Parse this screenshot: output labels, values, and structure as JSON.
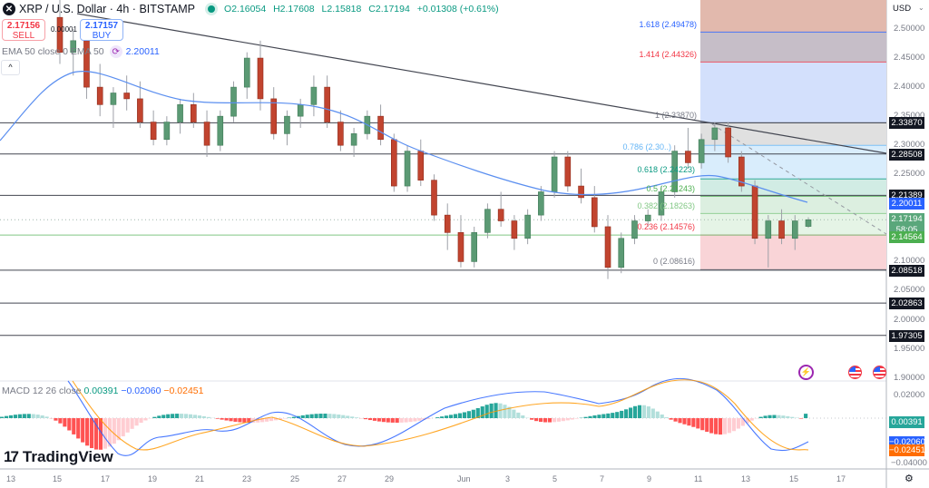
{
  "header": {
    "symbol_icon": "close-x-icon",
    "title": "XRP / U.S. Dollar · 4h · BITSTAMP",
    "status": "market-open",
    "ohlc": {
      "open": "O2.16054",
      "high": "H2.17608",
      "low": "L2.15818",
      "close": "C2.17194",
      "change": "+0.01308 (+0.61%)"
    }
  },
  "trade": {
    "sell_price": "2.17156",
    "sell_label": "SELL",
    "spread": "0.00001",
    "buy_price": "2.17157",
    "buy_label": "BUY"
  },
  "ema_legend": {
    "label": "EMA 50 close 0 EMA 50",
    "value": "2.20011"
  },
  "macd_legend": {
    "label": "MACD 12 26 close",
    "hist": "0.00391",
    "macd": "−0.02060",
    "signal": "−0.02451"
  },
  "brand": "TradingView",
  "price_axis": {
    "currency": "USD",
    "ticks": [
      "2.50000",
      "2.45000",
      "2.40000",
      "2.35000",
      "2.30000",
      "2.25000",
      "2.20000",
      "2.15000",
      "2.10000",
      "2.05000",
      "2.00000",
      "1.95000",
      "1.90000"
    ],
    "macd_ticks": [
      "0.02000",
      "−0.04000"
    ],
    "tags": [
      {
        "value": "2.33870",
        "color": "#131722"
      },
      {
        "value": "2.28508",
        "color": "#131722"
      },
      {
        "value": "2.21389",
        "color": "#131722"
      },
      {
        "value": "2.20011",
        "color": "#2962ff"
      },
      {
        "value": "2.17194",
        "color": "#5aa77b"
      },
      {
        "value": "58:05",
        "color": "#5aa77b"
      },
      {
        "value": "2.14564",
        "color": "#4caf50"
      },
      {
        "value": "2.08518",
        "color": "#131722"
      },
      {
        "value": "2.02863",
        "color": "#131722"
      },
      {
        "value": "1.97305",
        "color": "#131722"
      },
      {
        "value": "0.00391",
        "color": "#26a69a"
      },
      {
        "value": "−0.02060",
        "color": "#2962ff"
      },
      {
        "value": "−0.02451",
        "color": "#ff6d00"
      }
    ]
  },
  "time_axis": {
    "ticks": [
      "13",
      "15",
      "17",
      "19",
      "21",
      "23",
      "25",
      "27",
      "29",
      "Jun",
      "3",
      "5",
      "7",
      "9",
      "11",
      "13",
      "15",
      "17"
    ]
  },
  "fib_labels": [
    {
      "text": "1.618 (2.49478)",
      "color": "#2962ff"
    },
    {
      "text": "1.414 (2.44326)",
      "color": "#f23645"
    },
    {
      "text": "1 (2.33870)",
      "color": "#787b86"
    },
    {
      "text": "0.786 (2.30..)",
      "color": "#64b5f6"
    },
    {
      "text": "0.618 (2.24223)",
      "color": "#089981"
    },
    {
      "text": "0.5 (2.21243)",
      "color": "#4caf50"
    },
    {
      "text": "0.382 (2.18263)",
      "color": "#81c784"
    },
    {
      "text": "0.236 (2.14576)",
      "color": "#f23645"
    },
    {
      "text": "0 (2.08616)",
      "color": "#787b86"
    }
  ],
  "icons": {
    "settings": "gear-icon",
    "events": "flash-icon",
    "economic_event": "us-flag-icon",
    "currency_menu": "chevron-down-icon",
    "collapse": "chevron-up-icon"
  },
  "chart_data": {
    "type": "candlestick",
    "title": "XRP / U.S. Dollar · 4h · BITSTAMP",
    "xlabel": "",
    "ylabel": "USD",
    "x_ticks": [
      "13",
      "15",
      "17",
      "19",
      "21",
      "23",
      "25",
      "27",
      "29",
      "Jun",
      "3",
      "5",
      "7",
      "9",
      "11",
      "13",
      "15",
      "17"
    ],
    "ylim": [
      1.88,
      2.53
    ],
    "last": {
      "open": 2.16054,
      "high": 2.17608,
      "low": 2.15818,
      "close": 2.17194,
      "change": 0.01308,
      "change_pct": 0.61
    },
    "horizontal_levels": [
      2.3387,
      2.28508,
      2.21389,
      2.14564,
      2.08518,
      2.02863,
      1.97305
    ],
    "trendline": {
      "from": {
        "x": "16",
        "price": 2.53
      },
      "to": {
        "x": "17",
        "price": 2.285
      }
    },
    "ema50": {
      "current": 2.20011
    },
    "fibonacci": [
      {
        "level": 1.618,
        "price": 2.49478
      },
      {
        "level": 1.414,
        "price": 2.44326
      },
      {
        "level": 1,
        "price": 2.3387
      },
      {
        "level": 0.786,
        "price": 2.3
      },
      {
        "level": 0.618,
        "price": 2.24223
      },
      {
        "level": 0.5,
        "price": 2.21243
      },
      {
        "level": 0.382,
        "price": 2.18263
      },
      {
        "level": 0.236,
        "price": 2.14576
      },
      {
        "level": 0,
        "price": 2.08616
      }
    ],
    "macd": {
      "fast": 12,
      "slow": 26,
      "source": "close",
      "histogram": 0.00391,
      "macd": -0.0206,
      "signal": -0.02451,
      "ylim": [
        -0.045,
        0.025
      ]
    },
    "candles_approx": [
      [
        2.52,
        2.55,
        2.44,
        2.46
      ],
      [
        2.46,
        2.5,
        2.42,
        2.48
      ],
      [
        2.48,
        2.5,
        2.38,
        2.4
      ],
      [
        2.4,
        2.44,
        2.35,
        2.37
      ],
      [
        2.37,
        2.4,
        2.33,
        2.39
      ],
      [
        2.39,
        2.42,
        2.36,
        2.38
      ],
      [
        2.38,
        2.41,
        2.33,
        2.34
      ],
      [
        2.34,
        2.36,
        2.3,
        2.31
      ],
      [
        2.31,
        2.35,
        2.3,
        2.34
      ],
      [
        2.34,
        2.38,
        2.32,
        2.37
      ],
      [
        2.37,
        2.39,
        2.33,
        2.34
      ],
      [
        2.34,
        2.36,
        2.28,
        2.3
      ],
      [
        2.3,
        2.36,
        2.29,
        2.35
      ],
      [
        2.35,
        2.41,
        2.34,
        2.4
      ],
      [
        2.4,
        2.46,
        2.38,
        2.45
      ],
      [
        2.45,
        2.48,
        2.36,
        2.38
      ],
      [
        2.38,
        2.4,
        2.31,
        2.32
      ],
      [
        2.32,
        2.36,
        2.3,
        2.35
      ],
      [
        2.35,
        2.38,
        2.33,
        2.37
      ],
      [
        2.37,
        2.42,
        2.35,
        2.4
      ],
      [
        2.4,
        2.42,
        2.33,
        2.34
      ],
      [
        2.34,
        2.36,
        2.29,
        2.3
      ],
      [
        2.3,
        2.33,
        2.28,
        2.32
      ],
      [
        2.32,
        2.36,
        2.31,
        2.35
      ],
      [
        2.35,
        2.37,
        2.3,
        2.31
      ],
      [
        2.31,
        2.32,
        2.22,
        2.23
      ],
      [
        2.23,
        2.3,
        2.22,
        2.29
      ],
      [
        2.29,
        2.31,
        2.23,
        2.24
      ],
      [
        2.24,
        2.25,
        2.17,
        2.18
      ],
      [
        2.18,
        2.2,
        2.12,
        2.15
      ],
      [
        2.15,
        2.18,
        2.09,
        2.1
      ],
      [
        2.1,
        2.16,
        2.09,
        2.15
      ],
      [
        2.15,
        2.2,
        2.14,
        2.19
      ],
      [
        2.19,
        2.22,
        2.16,
        2.17
      ],
      [
        2.17,
        2.18,
        2.12,
        2.14
      ],
      [
        2.14,
        2.19,
        2.13,
        2.18
      ],
      [
        2.18,
        2.23,
        2.17,
        2.22
      ],
      [
        2.22,
        2.29,
        2.21,
        2.28
      ],
      [
        2.28,
        2.29,
        2.22,
        2.23
      ],
      [
        2.23,
        2.26,
        2.2,
        2.21
      ],
      [
        2.21,
        2.23,
        2.15,
        2.16
      ],
      [
        2.16,
        2.18,
        2.07,
        2.09
      ],
      [
        2.09,
        2.15,
        2.08,
        2.14
      ],
      [
        2.14,
        2.18,
        2.13,
        2.17
      ],
      [
        2.17,
        2.19,
        2.16,
        2.18
      ],
      [
        2.18,
        2.23,
        2.17,
        2.22
      ],
      [
        2.22,
        2.3,
        2.21,
        2.29
      ],
      [
        2.29,
        2.33,
        2.26,
        2.27
      ],
      [
        2.27,
        2.32,
        2.26,
        2.31
      ],
      [
        2.31,
        2.34,
        2.29,
        2.33
      ],
      [
        2.33,
        2.34,
        2.27,
        2.28
      ],
      [
        2.28,
        2.29,
        2.22,
        2.23
      ],
      [
        2.23,
        2.24,
        2.13,
        2.14
      ],
      [
        2.14,
        2.18,
        2.09,
        2.17
      ],
      [
        2.17,
        2.19,
        2.13,
        2.14
      ],
      [
        2.14,
        2.18,
        2.12,
        2.17
      ],
      [
        2.16054,
        2.17608,
        2.15818,
        2.17194
      ]
    ]
  }
}
